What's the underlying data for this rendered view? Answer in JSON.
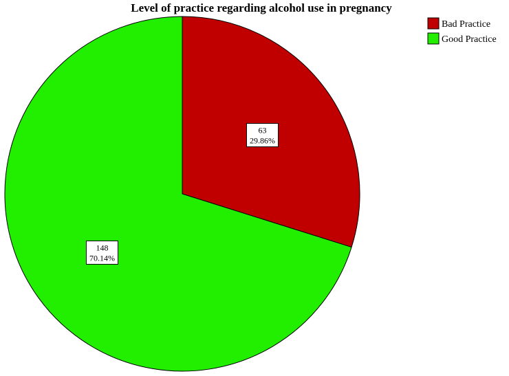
{
  "chart_data": {
    "type": "pie",
    "title": "Level of practice regarding alcohol use in pregnancy",
    "legend_position": "top-right",
    "slices": [
      {
        "label": "Bad Practice",
        "count": 63,
        "percent_label": "29.86%",
        "color": "#C00000"
      },
      {
        "label": "Good Practice",
        "count": 148,
        "percent_label": "70.14%",
        "color": "#22EE00"
      }
    ],
    "start_angle": "12 o'clock",
    "direction": "clockwise"
  }
}
